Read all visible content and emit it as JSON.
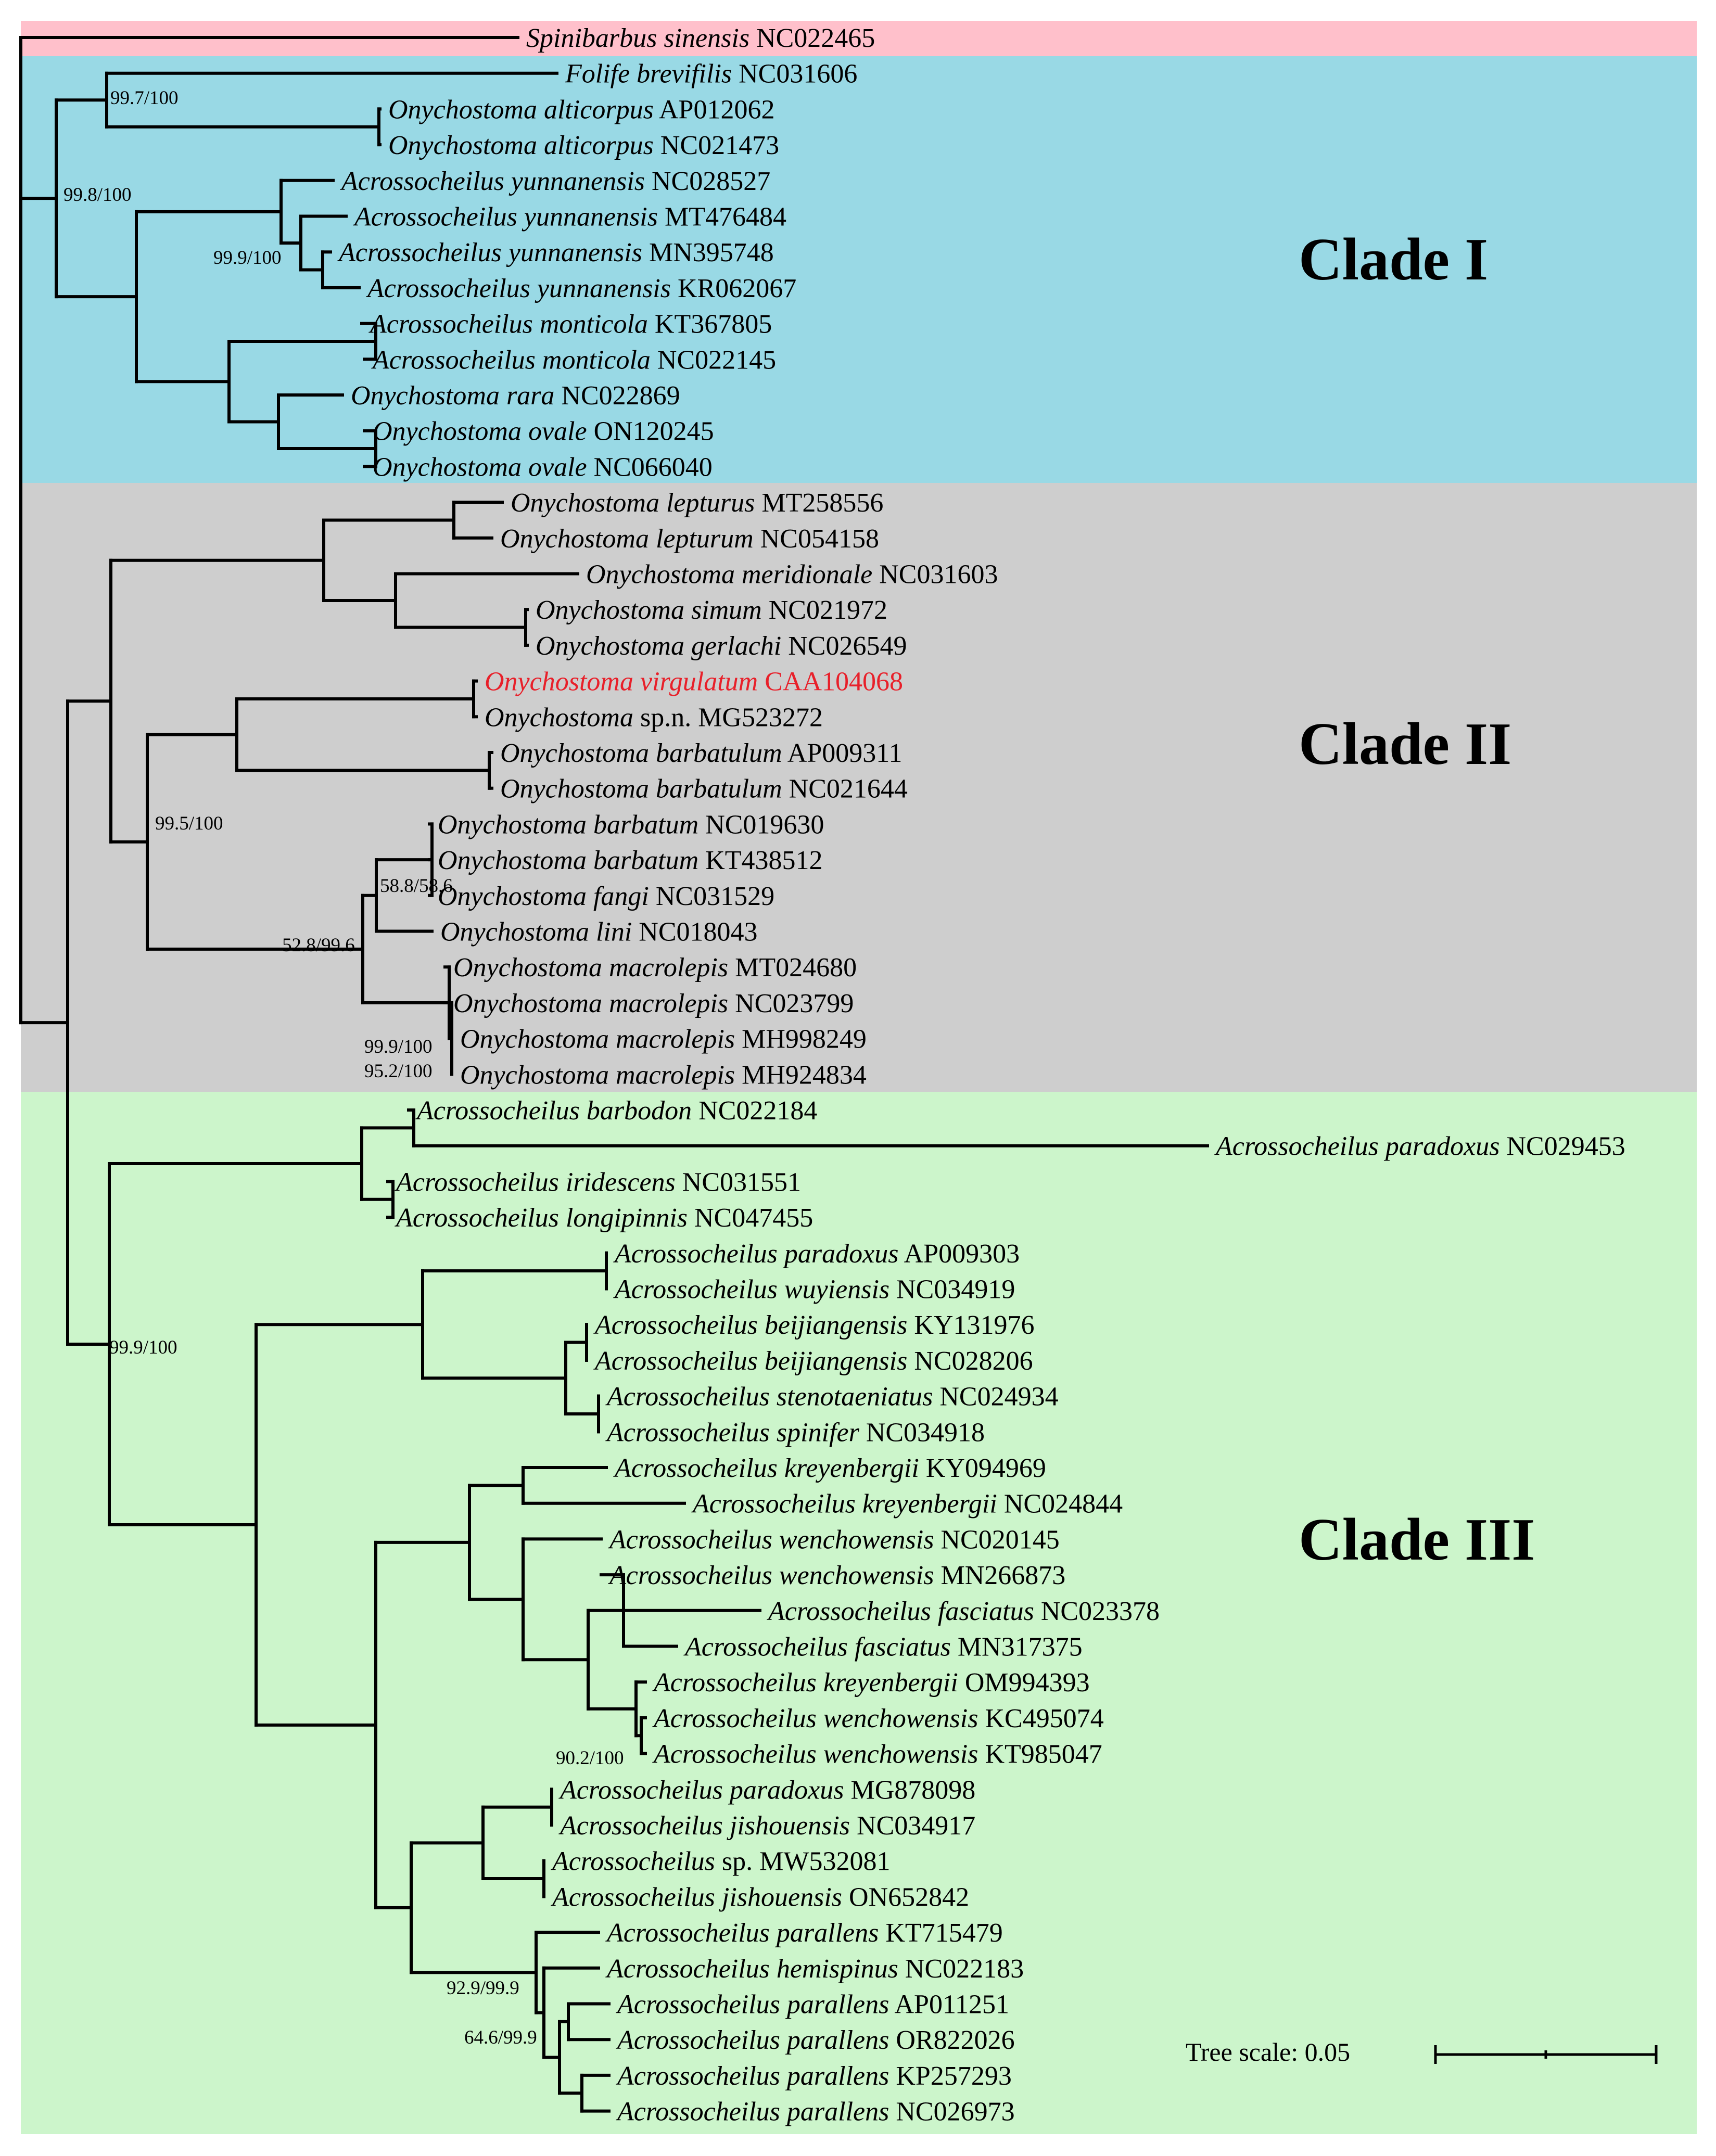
{
  "clades": [
    {
      "label": "Clade I",
      "color": "#99d9e5"
    },
    {
      "label": "Clade II",
      "color": "#cecece"
    },
    {
      "label": "Clade III",
      "color": "#ccf5cb"
    }
  ],
  "outgroup_color": "#ffc0cb",
  "highlight_color": "#e8202a",
  "tips": [
    {
      "species": "Spinibarbus sinensis",
      "accession": "NC022465"
    },
    {
      "species": "Folife brevifilis",
      "accession": "NC031606"
    },
    {
      "species": "Onychostoma alticorpus",
      "accession": "AP012062"
    },
    {
      "species": "Onychostoma alticorpus",
      "accession": "NC021473"
    },
    {
      "species": "Acrossocheilus yunnanensis",
      "accession": "NC028527"
    },
    {
      "species": "Acrossocheilus yunnanensis",
      "accession": "MT476484"
    },
    {
      "species": "Acrossocheilus yunnanensis",
      "accession": "MN395748"
    },
    {
      "species": "Acrossocheilus yunnanensis",
      "accession": "KR062067"
    },
    {
      "species": "Acrossocheilus monticola",
      "accession": "KT367805"
    },
    {
      "species": "Acrossocheilus monticola",
      "accession": "NC022145"
    },
    {
      "species": "Onychostoma rara",
      "accession": "NC022869"
    },
    {
      "species": "Onychostoma ovale",
      "accession": "ON120245"
    },
    {
      "species": "Onychostoma ovale",
      "accession": "NC066040"
    },
    {
      "species": "Onychostoma lepturus",
      "accession": "MT258556"
    },
    {
      "species": "Onychostoma lepturum",
      "accession": "NC054158"
    },
    {
      "species": "Onychostoma meridionale",
      "accession": "NC031603"
    },
    {
      "species": "Onychostoma simum",
      "accession": "NC021972"
    },
    {
      "species": "Onychostoma gerlachi",
      "accession": "NC026549"
    },
    {
      "species": "Onychostoma virgulatum",
      "accession": "CAA104068",
      "highlight": true
    },
    {
      "species": "Onychostoma",
      "accession": "sp.n. MG523272"
    },
    {
      "species": "Onychostoma barbatulum",
      "accession": "AP009311"
    },
    {
      "species": "Onychostoma barbatulum",
      "accession": "NC021644"
    },
    {
      "species": "Onychostoma barbatum",
      "accession": "NC019630"
    },
    {
      "species": "Onychostoma barbatum",
      "accession": "KT438512"
    },
    {
      "species": "Onychostoma fangi",
      "accession": "NC031529"
    },
    {
      "species": "Onychostoma lini",
      "accession": "NC018043"
    },
    {
      "species": "Onychostoma macrolepis",
      "accession": "MT024680"
    },
    {
      "species": "Onychostoma macrolepis",
      "accession": "NC023799"
    },
    {
      "species": "Onychostoma macrolepis",
      "accession": "MH998249"
    },
    {
      "species": "Onychostoma macrolepis",
      "accession": "MH924834"
    },
    {
      "species": "Acrossocheilus barbodon",
      "accession": "NC022184"
    },
    {
      "species": "Acrossocheilus paradoxus",
      "accession": "NC029453"
    },
    {
      "species": "Acrossocheilus iridescens",
      "accession": "NC031551"
    },
    {
      "species": "Acrossocheilus longipinnis",
      "accession": "NC047455"
    },
    {
      "species": "Acrossocheilus paradoxus",
      "accession": "AP009303"
    },
    {
      "species": "Acrossocheilus wuyiensis",
      "accession": "NC034919"
    },
    {
      "species": "Acrossocheilus beijiangensis",
      "accession": "KY131976"
    },
    {
      "species": "Acrossocheilus beijiangensis",
      "accession": "NC028206"
    },
    {
      "species": "Acrossocheilus stenotaeniatus",
      "accession": "NC024934"
    },
    {
      "species": "Acrossocheilus spinifer",
      "accession": "NC034918"
    },
    {
      "species": "Acrossocheilus kreyenbergii",
      "accession": "KY094969"
    },
    {
      "species": "Acrossocheilus kreyenbergii",
      "accession": "NC024844"
    },
    {
      "species": "Acrossocheilus wenchowensis",
      "accession": "NC020145"
    },
    {
      "species": "Acrossocheilus wenchowensis",
      "accession": "MN266873"
    },
    {
      "species": "Acrossocheilus fasciatus",
      "accession": "NC023378"
    },
    {
      "species": "Acrossocheilus fasciatus",
      "accession": "MN317375"
    },
    {
      "species": "Acrossocheilus kreyenbergii",
      "accession": "OM994393"
    },
    {
      "species": "Acrossocheilus wenchowensis",
      "accession": "KC495074"
    },
    {
      "species": "Acrossocheilus wenchowensis",
      "accession": "KT985047"
    },
    {
      "species": "Acrossocheilus paradoxus",
      "accession": "MG878098"
    },
    {
      "species": "Acrossocheilus jishouensis",
      "accession": "NC034917"
    },
    {
      "species": "Acrossocheilus",
      "accession": "sp. MW532081"
    },
    {
      "species": "Acrossocheilus jishouensis",
      "accession": "ON652842"
    },
    {
      "species": "Acrossocheilus parallens",
      "accession": "KT715479"
    },
    {
      "species": "Acrossocheilus hemispinus",
      "accession": "NC022183"
    },
    {
      "species": "Acrossocheilus parallens",
      "accession": "AP011251"
    },
    {
      "species": "Acrossocheilus parallens",
      "accession": "OR822026"
    },
    {
      "species": "Acrossocheilus parallens",
      "accession": "KP257293"
    },
    {
      "species": "Acrossocheilus parallens",
      "accession": "NC026973"
    }
  ],
  "support_values": [
    "99.7/100",
    "99.8/100",
    "99.9/100",
    "99.5/100",
    "58.8/58.6",
    "52.8/99.6",
    "99.9/100",
    "95.2/100",
    "99.9/100",
    "90.2/100",
    "92.9/99.9",
    "64.6/99.9"
  ],
  "scale": {
    "label": "Tree scale: 0.05",
    "value": 0.05
  }
}
